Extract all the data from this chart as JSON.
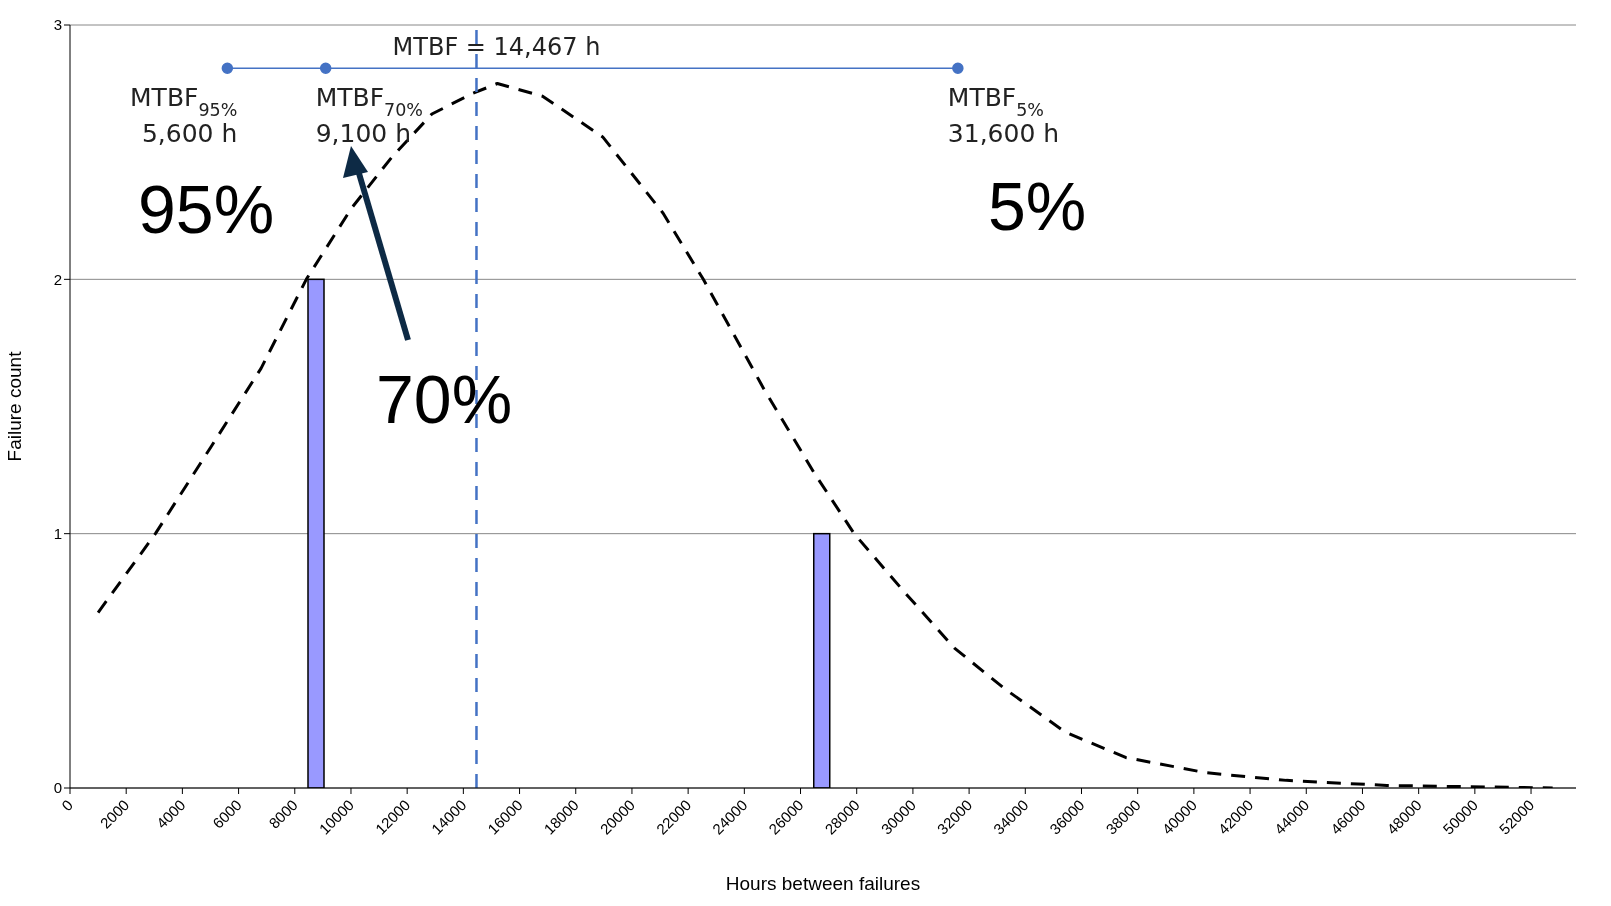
{
  "chart_data": {
    "type": "bar",
    "xlabel": "Hours between failures",
    "ylabel": "Failure count",
    "xlim": [
      0,
      53600
    ],
    "xticks": [
      0,
      2000,
      4000,
      6000,
      8000,
      10000,
      12000,
      14000,
      16000,
      18000,
      20000,
      22000,
      24000,
      26000,
      28000,
      30000,
      32000,
      34000,
      36000,
      38000,
      40000,
      42000,
      44000,
      46000,
      48000,
      50000,
      52000
    ],
    "ylim": [
      0,
      3
    ],
    "yticks": [
      0,
      1,
      2,
      3
    ],
    "grid": "y",
    "legend": false,
    "series": [
      {
        "color": "#9999ff",
        "x": [
          8750,
          26750
        ],
        "values": [
          2,
          1
        ]
      },
      {
        "type": "line",
        "color": "#000000",
        "line_style": "dashed",
        "marker": "none",
        "x": [
          1000,
          3040,
          5010,
          6800,
          8410,
          10020,
          11450,
          12880,
          14310,
          15210,
          16820,
          18960,
          21110,
          22540,
          24690,
          26480,
          27910,
          29700,
          31480,
          33270,
          35420,
          37570,
          40430,
          43290,
          46870,
          52770
        ],
        "values": [
          0.69,
          1.0,
          1.34,
          1.65,
          2.0,
          2.28,
          2.48,
          2.65,
          2.73,
          2.77,
          2.72,
          2.56,
          2.26,
          2.0,
          1.57,
          1.24,
          1.0,
          0.77,
          0.55,
          0.39,
          0.22,
          0.12,
          0.06,
          0.03,
          0.01,
          0.0
        ]
      },
      {
        "type": "line",
        "color": "#4472c4",
        "line_style": "solid",
        "marker": "circle",
        "x": [
          5600,
          9100,
          31600
        ],
        "values": [
          2.83,
          2.83,
          2.83
        ]
      }
    ],
    "ref_lines": [
      {
        "axis": "x",
        "value": 14467,
        "label": "MTBF = 14,467 h",
        "color": "#4472c4",
        "line_style": "dashed"
      }
    ],
    "annotations": [
      {
        "text": "MTBF$_{95%}$\n5,600 h",
        "x": 5600,
        "y": 2.83
      },
      {
        "text": "MTBF$_{70%}$\n9,100 h",
        "x": 9100,
        "y": 2.83
      },
      {
        "text": "MTBF$_{5%}$\n31,600 h",
        "x": 31600,
        "y": 2.83
      },
      "95%",
      "70%",
      "5%"
    ]
  }
}
